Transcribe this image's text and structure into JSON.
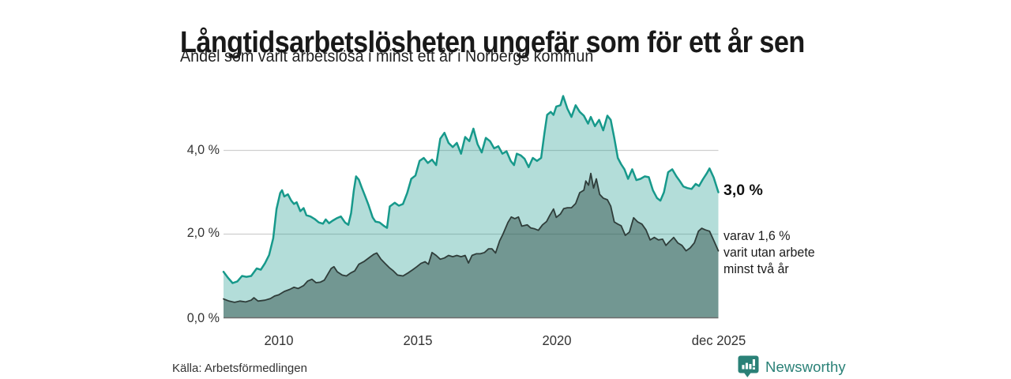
{
  "title": "Långtidsarbetslösheten ungefär som för ett år sen",
  "subtitle": "Andel som varit arbetslösa i minst ett år i Norbergs kommun",
  "source": "Källa: Arbetsförmedlingen",
  "brand": {
    "name": "Newsworthy",
    "color": "#2a8177",
    "icon": "chart-speech-bubble-icon"
  },
  "colors": {
    "background": "#ffffff",
    "title_text": "#191919",
    "axis_text": "#333333",
    "gridline": "#cfcfcf",
    "baseline": "#6e6e6e",
    "series1_line": "#17998b",
    "series1_fill": "rgba(23,153,139,0.33)",
    "series2_line": "#2f3d3a",
    "series2_fill": "rgba(36,66,60,0.45)"
  },
  "chart_data": {
    "type": "area",
    "title": "Långtidsarbetslösheten ungefär som för ett år sen",
    "subtitle": "Andel som varit arbetslösa i minst ett år i Norbergs kommun",
    "unit": "%",
    "x_axis": {
      "range_years": [
        2008.0,
        2025.92
      ],
      "tick_labels": [
        "2010",
        "2015",
        "2020",
        "dec 2025"
      ],
      "tick_years": [
        2010,
        2015,
        2020,
        2025.92
      ]
    },
    "y_axis": {
      "tick_labels": [
        "0,0 %",
        "2,0 %",
        "4,0 %"
      ],
      "tick_values": [
        0,
        2,
        4
      ],
      "gridline_values": [
        2,
        4
      ],
      "range": [
        0,
        5.5
      ],
      "grid": true
    },
    "legend": "none",
    "annotations": {
      "series1_end": "3,0 %",
      "series2_end_lines": [
        "varav 1,6 %",
        "varit utan arbete",
        "minst två år"
      ]
    },
    "series": [
      {
        "name": "Andel arbetslösa minst ett år",
        "end_value": 3.0,
        "points": [
          [
            2008.0,
            1.1
          ],
          [
            2008.17,
            0.95
          ],
          [
            2008.33,
            0.83
          ],
          [
            2008.5,
            0.87
          ],
          [
            2008.67,
            1.0
          ],
          [
            2008.83,
            0.98
          ],
          [
            2009.0,
            1.0
          ],
          [
            2009.2,
            1.18
          ],
          [
            2009.35,
            1.15
          ],
          [
            2009.5,
            1.3
          ],
          [
            2009.65,
            1.5
          ],
          [
            2009.8,
            1.9
          ],
          [
            2009.92,
            2.6
          ],
          [
            2010.05,
            2.98
          ],
          [
            2010.12,
            3.05
          ],
          [
            2010.2,
            2.9
          ],
          [
            2010.33,
            2.95
          ],
          [
            2010.45,
            2.8
          ],
          [
            2010.55,
            2.72
          ],
          [
            2010.65,
            2.76
          ],
          [
            2010.78,
            2.55
          ],
          [
            2010.9,
            2.62
          ],
          [
            2011.0,
            2.45
          ],
          [
            2011.15,
            2.42
          ],
          [
            2011.3,
            2.36
          ],
          [
            2011.45,
            2.28
          ],
          [
            2011.6,
            2.25
          ],
          [
            2011.7,
            2.35
          ],
          [
            2011.82,
            2.26
          ],
          [
            2011.95,
            2.32
          ],
          [
            2012.1,
            2.38
          ],
          [
            2012.25,
            2.42
          ],
          [
            2012.4,
            2.28
          ],
          [
            2012.52,
            2.22
          ],
          [
            2012.62,
            2.5
          ],
          [
            2012.72,
            3.05
          ],
          [
            2012.8,
            3.38
          ],
          [
            2012.9,
            3.3
          ],
          [
            2013.0,
            3.12
          ],
          [
            2013.12,
            2.92
          ],
          [
            2013.25,
            2.7
          ],
          [
            2013.4,
            2.4
          ],
          [
            2013.5,
            2.3
          ],
          [
            2013.65,
            2.28
          ],
          [
            2013.8,
            2.2
          ],
          [
            2013.92,
            2.15
          ],
          [
            2014.02,
            2.66
          ],
          [
            2014.2,
            2.75
          ],
          [
            2014.35,
            2.68
          ],
          [
            2014.5,
            2.72
          ],
          [
            2014.65,
            2.98
          ],
          [
            2014.8,
            3.32
          ],
          [
            2014.95,
            3.4
          ],
          [
            2015.1,
            3.75
          ],
          [
            2015.25,
            3.82
          ],
          [
            2015.4,
            3.7
          ],
          [
            2015.55,
            3.78
          ],
          [
            2015.7,
            3.65
          ],
          [
            2015.85,
            4.28
          ],
          [
            2016.0,
            4.42
          ],
          [
            2016.15,
            4.18
          ],
          [
            2016.3,
            4.08
          ],
          [
            2016.45,
            4.18
          ],
          [
            2016.6,
            3.92
          ],
          [
            2016.75,
            4.32
          ],
          [
            2016.9,
            4.22
          ],
          [
            2017.05,
            4.52
          ],
          [
            2017.2,
            4.15
          ],
          [
            2017.35,
            3.95
          ],
          [
            2017.5,
            4.3
          ],
          [
            2017.65,
            4.22
          ],
          [
            2017.8,
            4.05
          ],
          [
            2017.95,
            4.1
          ],
          [
            2018.1,
            3.92
          ],
          [
            2018.25,
            3.98
          ],
          [
            2018.4,
            3.75
          ],
          [
            2018.52,
            3.65
          ],
          [
            2018.62,
            3.92
          ],
          [
            2018.77,
            3.88
          ],
          [
            2018.9,
            3.8
          ],
          [
            2019.05,
            3.6
          ],
          [
            2019.2,
            3.82
          ],
          [
            2019.35,
            3.75
          ],
          [
            2019.5,
            3.82
          ],
          [
            2019.62,
            4.4
          ],
          [
            2019.72,
            4.85
          ],
          [
            2019.85,
            4.92
          ],
          [
            2019.95,
            4.85
          ],
          [
            2020.05,
            5.05
          ],
          [
            2020.2,
            5.08
          ],
          [
            2020.3,
            5.3
          ],
          [
            2020.45,
            5.0
          ],
          [
            2020.6,
            4.8
          ],
          [
            2020.75,
            5.08
          ],
          [
            2020.9,
            4.92
          ],
          [
            2021.05,
            4.83
          ],
          [
            2021.2,
            4.64
          ],
          [
            2021.3,
            4.8
          ],
          [
            2021.45,
            4.58
          ],
          [
            2021.6,
            4.73
          ],
          [
            2021.75,
            4.48
          ],
          [
            2021.9,
            4.83
          ],
          [
            2022.02,
            4.73
          ],
          [
            2022.15,
            4.3
          ],
          [
            2022.28,
            3.82
          ],
          [
            2022.4,
            3.67
          ],
          [
            2022.52,
            3.55
          ],
          [
            2022.65,
            3.32
          ],
          [
            2022.8,
            3.55
          ],
          [
            2022.95,
            3.29
          ],
          [
            2023.1,
            3.32
          ],
          [
            2023.25,
            3.38
          ],
          [
            2023.4,
            3.36
          ],
          [
            2023.55,
            3.05
          ],
          [
            2023.7,
            2.86
          ],
          [
            2023.82,
            2.8
          ],
          [
            2023.95,
            3.0
          ],
          [
            2024.1,
            3.48
          ],
          [
            2024.25,
            3.55
          ],
          [
            2024.4,
            3.38
          ],
          [
            2024.52,
            3.27
          ],
          [
            2024.65,
            3.14
          ],
          [
            2024.8,
            3.1
          ],
          [
            2024.95,
            3.08
          ],
          [
            2025.1,
            3.2
          ],
          [
            2025.22,
            3.15
          ],
          [
            2025.35,
            3.3
          ],
          [
            2025.5,
            3.45
          ],
          [
            2025.6,
            3.57
          ],
          [
            2025.75,
            3.35
          ],
          [
            2025.92,
            3.0
          ]
        ]
      },
      {
        "name": "varav utan arbete minst två år",
        "end_value": 1.6,
        "points": [
          [
            2008.0,
            0.45
          ],
          [
            2008.2,
            0.4
          ],
          [
            2008.4,
            0.37
          ],
          [
            2008.6,
            0.4
          ],
          [
            2008.8,
            0.38
          ],
          [
            2009.0,
            0.42
          ],
          [
            2009.1,
            0.48
          ],
          [
            2009.25,
            0.4
          ],
          [
            2009.5,
            0.42
          ],
          [
            2009.7,
            0.46
          ],
          [
            2009.85,
            0.52
          ],
          [
            2010.0,
            0.55
          ],
          [
            2010.2,
            0.63
          ],
          [
            2010.4,
            0.68
          ],
          [
            2010.55,
            0.73
          ],
          [
            2010.7,
            0.7
          ],
          [
            2010.9,
            0.77
          ],
          [
            2011.05,
            0.88
          ],
          [
            2011.2,
            0.92
          ],
          [
            2011.35,
            0.84
          ],
          [
            2011.5,
            0.85
          ],
          [
            2011.65,
            0.9
          ],
          [
            2011.78,
            1.05
          ],
          [
            2011.9,
            1.18
          ],
          [
            2012.0,
            1.22
          ],
          [
            2012.12,
            1.1
          ],
          [
            2012.3,
            1.02
          ],
          [
            2012.45,
            1.0
          ],
          [
            2012.6,
            1.07
          ],
          [
            2012.75,
            1.12
          ],
          [
            2012.9,
            1.28
          ],
          [
            2013.1,
            1.35
          ],
          [
            2013.3,
            1.45
          ],
          [
            2013.45,
            1.52
          ],
          [
            2013.55,
            1.55
          ],
          [
            2013.7,
            1.4
          ],
          [
            2013.85,
            1.3
          ],
          [
            2014.0,
            1.2
          ],
          [
            2014.15,
            1.12
          ],
          [
            2014.3,
            1.02
          ],
          [
            2014.5,
            1.0
          ],
          [
            2014.7,
            1.08
          ],
          [
            2014.85,
            1.15
          ],
          [
            2015.0,
            1.22
          ],
          [
            2015.15,
            1.3
          ],
          [
            2015.3,
            1.34
          ],
          [
            2015.42,
            1.28
          ],
          [
            2015.55,
            1.56
          ],
          [
            2015.7,
            1.49
          ],
          [
            2015.85,
            1.4
          ],
          [
            2016.0,
            1.43
          ],
          [
            2016.15,
            1.49
          ],
          [
            2016.3,
            1.46
          ],
          [
            2016.45,
            1.49
          ],
          [
            2016.6,
            1.46
          ],
          [
            2016.75,
            1.49
          ],
          [
            2016.87,
            1.31
          ],
          [
            2017.0,
            1.49
          ],
          [
            2017.15,
            1.53
          ],
          [
            2017.3,
            1.53
          ],
          [
            2017.45,
            1.56
          ],
          [
            2017.6,
            1.65
          ],
          [
            2017.72,
            1.65
          ],
          [
            2017.85,
            1.55
          ],
          [
            2018.0,
            1.84
          ],
          [
            2018.12,
            2.0
          ],
          [
            2018.3,
            2.28
          ],
          [
            2018.42,
            2.41
          ],
          [
            2018.55,
            2.37
          ],
          [
            2018.68,
            2.41
          ],
          [
            2018.8,
            2.19
          ],
          [
            2019.0,
            2.22
          ],
          [
            2019.12,
            2.15
          ],
          [
            2019.25,
            2.13
          ],
          [
            2019.4,
            2.09
          ],
          [
            2019.55,
            2.22
          ],
          [
            2019.7,
            2.3
          ],
          [
            2019.82,
            2.45
          ],
          [
            2019.95,
            2.6
          ],
          [
            2020.05,
            2.4
          ],
          [
            2020.2,
            2.48
          ],
          [
            2020.32,
            2.61
          ],
          [
            2020.45,
            2.63
          ],
          [
            2020.6,
            2.63
          ],
          [
            2020.75,
            2.73
          ],
          [
            2020.9,
            2.99
          ],
          [
            2021.05,
            3.05
          ],
          [
            2021.12,
            3.27
          ],
          [
            2021.22,
            3.17
          ],
          [
            2021.3,
            3.45
          ],
          [
            2021.4,
            3.1
          ],
          [
            2021.5,
            3.32
          ],
          [
            2021.62,
            2.95
          ],
          [
            2021.75,
            2.86
          ],
          [
            2021.9,
            2.82
          ],
          [
            2022.02,
            2.67
          ],
          [
            2022.15,
            2.29
          ],
          [
            2022.28,
            2.24
          ],
          [
            2022.4,
            2.2
          ],
          [
            2022.55,
            1.97
          ],
          [
            2022.7,
            2.05
          ],
          [
            2022.85,
            2.39
          ],
          [
            2023.0,
            2.29
          ],
          [
            2023.15,
            2.24
          ],
          [
            2023.3,
            2.1
          ],
          [
            2023.45,
            1.86
          ],
          [
            2023.6,
            1.92
          ],
          [
            2023.75,
            1.86
          ],
          [
            2023.9,
            1.88
          ],
          [
            2024.02,
            1.73
          ],
          [
            2024.15,
            1.82
          ],
          [
            2024.3,
            1.92
          ],
          [
            2024.45,
            1.79
          ],
          [
            2024.6,
            1.73
          ],
          [
            2024.75,
            1.6
          ],
          [
            2024.9,
            1.67
          ],
          [
            2025.05,
            1.79
          ],
          [
            2025.2,
            2.07
          ],
          [
            2025.32,
            2.14
          ],
          [
            2025.45,
            2.1
          ],
          [
            2025.6,
            2.07
          ],
          [
            2025.75,
            1.85
          ],
          [
            2025.92,
            1.6
          ]
        ]
      }
    ]
  }
}
